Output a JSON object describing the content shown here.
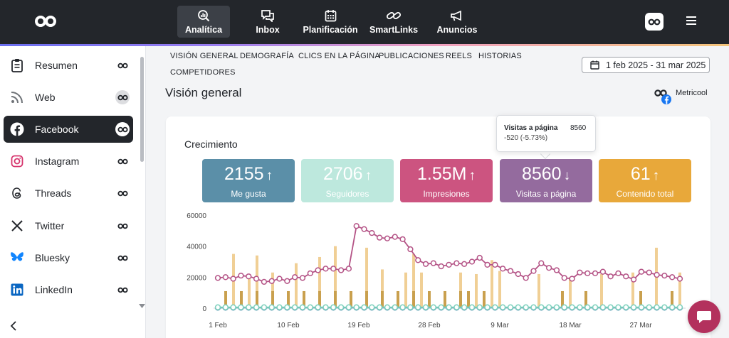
{
  "topnav": {
    "items": [
      {
        "label": "Analítica",
        "icon": "analytics-icon"
      },
      {
        "label": "Inbox",
        "icon": "inbox-icon"
      },
      {
        "label": "Planificación",
        "icon": "calendar-icon"
      },
      {
        "label": "SmartLinks",
        "icon": "link-icon"
      },
      {
        "label": "Anuncios",
        "icon": "megaphone-icon"
      }
    ],
    "active_index": 0
  },
  "sidebar": {
    "items": [
      {
        "label": "Resumen",
        "icon": "clipboard-icon"
      },
      {
        "label": "Web",
        "icon": "rss-icon"
      },
      {
        "label": "Facebook",
        "icon": "facebook-icon"
      },
      {
        "label": "Instagram",
        "icon": "instagram-icon"
      },
      {
        "label": "Threads",
        "icon": "threads-icon"
      },
      {
        "label": "Twitter",
        "icon": "x-icon"
      },
      {
        "label": "Bluesky",
        "icon": "bluesky-icon"
      },
      {
        "label": "LinkedIn",
        "icon": "linkedin-icon"
      }
    ],
    "active_index": 2
  },
  "tabs": {
    "items": [
      "VISIÓN GENERAL",
      "DEMOGRAFÍA",
      "CLICS EN LA PÁGINA",
      "PUBLICACIONES",
      "REELS",
      "HISTORIAS",
      "COMPETIDORES"
    ]
  },
  "date_range": "1 feb 2025 - 31 mar 2025",
  "page_title": "Visión general",
  "brand": "Metricool",
  "growth": {
    "title": "Crecimiento",
    "kpis": [
      {
        "value": "2155",
        "trend": "up",
        "arrow": "↑",
        "label": "Me gusta",
        "color": "#5b8fa8"
      },
      {
        "value": "2706",
        "trend": "up",
        "arrow": "↑",
        "label": "Seguidores",
        "color": "#bde8dd"
      },
      {
        "value": "1.55M",
        "trend": "up",
        "arrow": "↑",
        "label": "Impresiones",
        "color": "#cc5480"
      },
      {
        "value": "8560",
        "trend": "down",
        "arrow": "↓",
        "label": "Visitas a página",
        "color": "#946b9e"
      },
      {
        "value": "61",
        "trend": "up",
        "arrow": "↑",
        "label": "Contenido total",
        "color": "#e8a83a"
      }
    ]
  },
  "tooltip": {
    "title": "Visitas a página",
    "value": "8560",
    "change": "-520 (-5.73%)"
  },
  "chart_data": {
    "type": "line",
    "y_ticks": [
      "0",
      "20000",
      "40000",
      "60000"
    ],
    "ylim": [
      0,
      60000
    ],
    "x_tick_labels": [
      "1 Feb",
      "10 Feb",
      "19 Feb",
      "28 Feb",
      "9 Mar",
      "18 Mar",
      "27 Mar"
    ],
    "x_tick_days": [
      0,
      9,
      18,
      27,
      36,
      45,
      54
    ],
    "series": [
      {
        "color": "#b45386",
        "kind": "line",
        "values": [
          19500,
          20000,
          19000,
          21000,
          20500,
          19000,
          17000,
          17500,
          19000,
          17500,
          20000,
          19500,
          22500,
          24500,
          25500,
          25500,
          24500,
          25500,
          53000,
          51000,
          48500,
          45500,
          45000,
          46000,
          44500,
          38000,
          31000,
          28500,
          29000,
          27000,
          28000,
          29000,
          28500,
          30000,
          32500,
          28000,
          28000,
          25500,
          24000,
          22000,
          19500,
          24000,
          29000,
          26000,
          24500,
          19500,
          19000,
          23000,
          22500,
          22500,
          23500,
          20500,
          22500,
          20500,
          18500,
          23500,
          23000,
          21500,
          21000,
          20000,
          19000
        ]
      },
      {
        "color": "#f0cf95",
        "kind": "bar",
        "values": [
          0,
          0,
          0,
          0,
          0,
          0,
          0,
          0,
          0,
          0,
          0,
          0,
          0,
          0,
          0,
          0,
          0,
          0,
          0,
          0,
          0,
          0,
          0,
          0,
          0,
          0,
          0,
          0,
          0,
          0,
          0,
          0,
          0,
          0,
          0,
          0,
          0,
          0,
          0,
          0,
          0,
          0,
          0,
          0,
          0,
          0,
          0,
          0,
          0,
          0,
          0,
          0,
          0,
          0,
          0,
          0,
          0,
          0,
          0,
          0,
          0
        ]
      },
      {
        "color": "#4f8fb0",
        "kind": "line",
        "values": [
          300,
          300,
          300,
          300,
          300,
          300,
          300,
          300,
          300,
          300,
          300,
          300,
          300,
          300,
          300,
          300,
          300,
          300,
          300,
          300,
          300,
          300,
          300,
          300,
          300,
          300,
          300,
          300,
          300,
          300,
          300,
          300,
          300,
          300,
          300,
          300,
          300,
          300,
          300,
          300,
          300,
          300,
          300,
          300,
          300,
          300,
          300,
          300,
          300,
          300,
          300,
          300,
          300,
          300,
          300,
          300,
          300,
          300,
          300,
          300,
          300
        ]
      },
      {
        "color": "#7fd1be",
        "kind": "line",
        "values": [
          600,
          600,
          600,
          600,
          600,
          600,
          600,
          600,
          600,
          600,
          600,
          600,
          600,
          600,
          600,
          600,
          600,
          600,
          600,
          600,
          600,
          600,
          600,
          600,
          600,
          600,
          600,
          600,
          600,
          600,
          600,
          600,
          600,
          600,
          600,
          600,
          600,
          600,
          600,
          600,
          600,
          600,
          600,
          600,
          600,
          600,
          600,
          600,
          600,
          600,
          600,
          600,
          600,
          600,
          600,
          600,
          600,
          600,
          600,
          600,
          600
        ]
      }
    ],
    "impression_bars": [
      {
        "day": 2,
        "value": 35000
      },
      {
        "day": 4,
        "value": 22000
      },
      {
        "day": 5,
        "value": 34000
      },
      {
        "day": 7,
        "value": 23000
      },
      {
        "day": 10,
        "value": 29000
      },
      {
        "day": 13,
        "value": 33000
      },
      {
        "day": 15,
        "value": 40000
      },
      {
        "day": 19,
        "value": 39000
      },
      {
        "day": 21,
        "value": 25000
      },
      {
        "day": 24,
        "value": 23000
      },
      {
        "day": 25,
        "value": 35000
      },
      {
        "day": 26,
        "value": 23000
      },
      {
        "day": 31,
        "value": 23000
      },
      {
        "day": 33,
        "value": 22000
      },
      {
        "day": 35,
        "value": 31000
      },
      {
        "day": 36,
        "value": 24000
      },
      {
        "day": 41,
        "value": 22000
      },
      {
        "day": 45,
        "value": 20000
      },
      {
        "day": 49,
        "value": 22000
      },
      {
        "day": 53,
        "value": 23000
      },
      {
        "day": 56,
        "value": 39000
      },
      {
        "day": 59,
        "value": 23000
      }
    ],
    "content_bars": [
      {
        "day": 1,
        "value": 11000
      },
      {
        "day": 3,
        "value": 11000
      },
      {
        "day": 5,
        "value": 11000
      },
      {
        "day": 7,
        "value": 11000
      },
      {
        "day": 9,
        "value": 11000
      },
      {
        "day": 11,
        "value": 11000
      },
      {
        "day": 13,
        "value": 11000
      },
      {
        "day": 15,
        "value": 11000
      },
      {
        "day": 17,
        "value": 11000
      },
      {
        "day": 19,
        "value": 11000
      },
      {
        "day": 21,
        "value": 11000
      },
      {
        "day": 23,
        "value": 11000
      },
      {
        "day": 25,
        "value": 11000
      },
      {
        "day": 27,
        "value": 11000
      },
      {
        "day": 29,
        "value": 11000
      },
      {
        "day": 31,
        "value": 11000
      },
      {
        "day": 32,
        "value": 11000
      },
      {
        "day": 34,
        "value": 11000
      },
      {
        "day": 44,
        "value": 11000
      },
      {
        "day": 47,
        "value": 11000
      },
      {
        "day": 54,
        "value": 11000
      },
      {
        "day": 58,
        "value": 11000
      }
    ],
    "bar_colors": {
      "impressions": "#f0cf95",
      "content": "#c9a04e"
    }
  }
}
